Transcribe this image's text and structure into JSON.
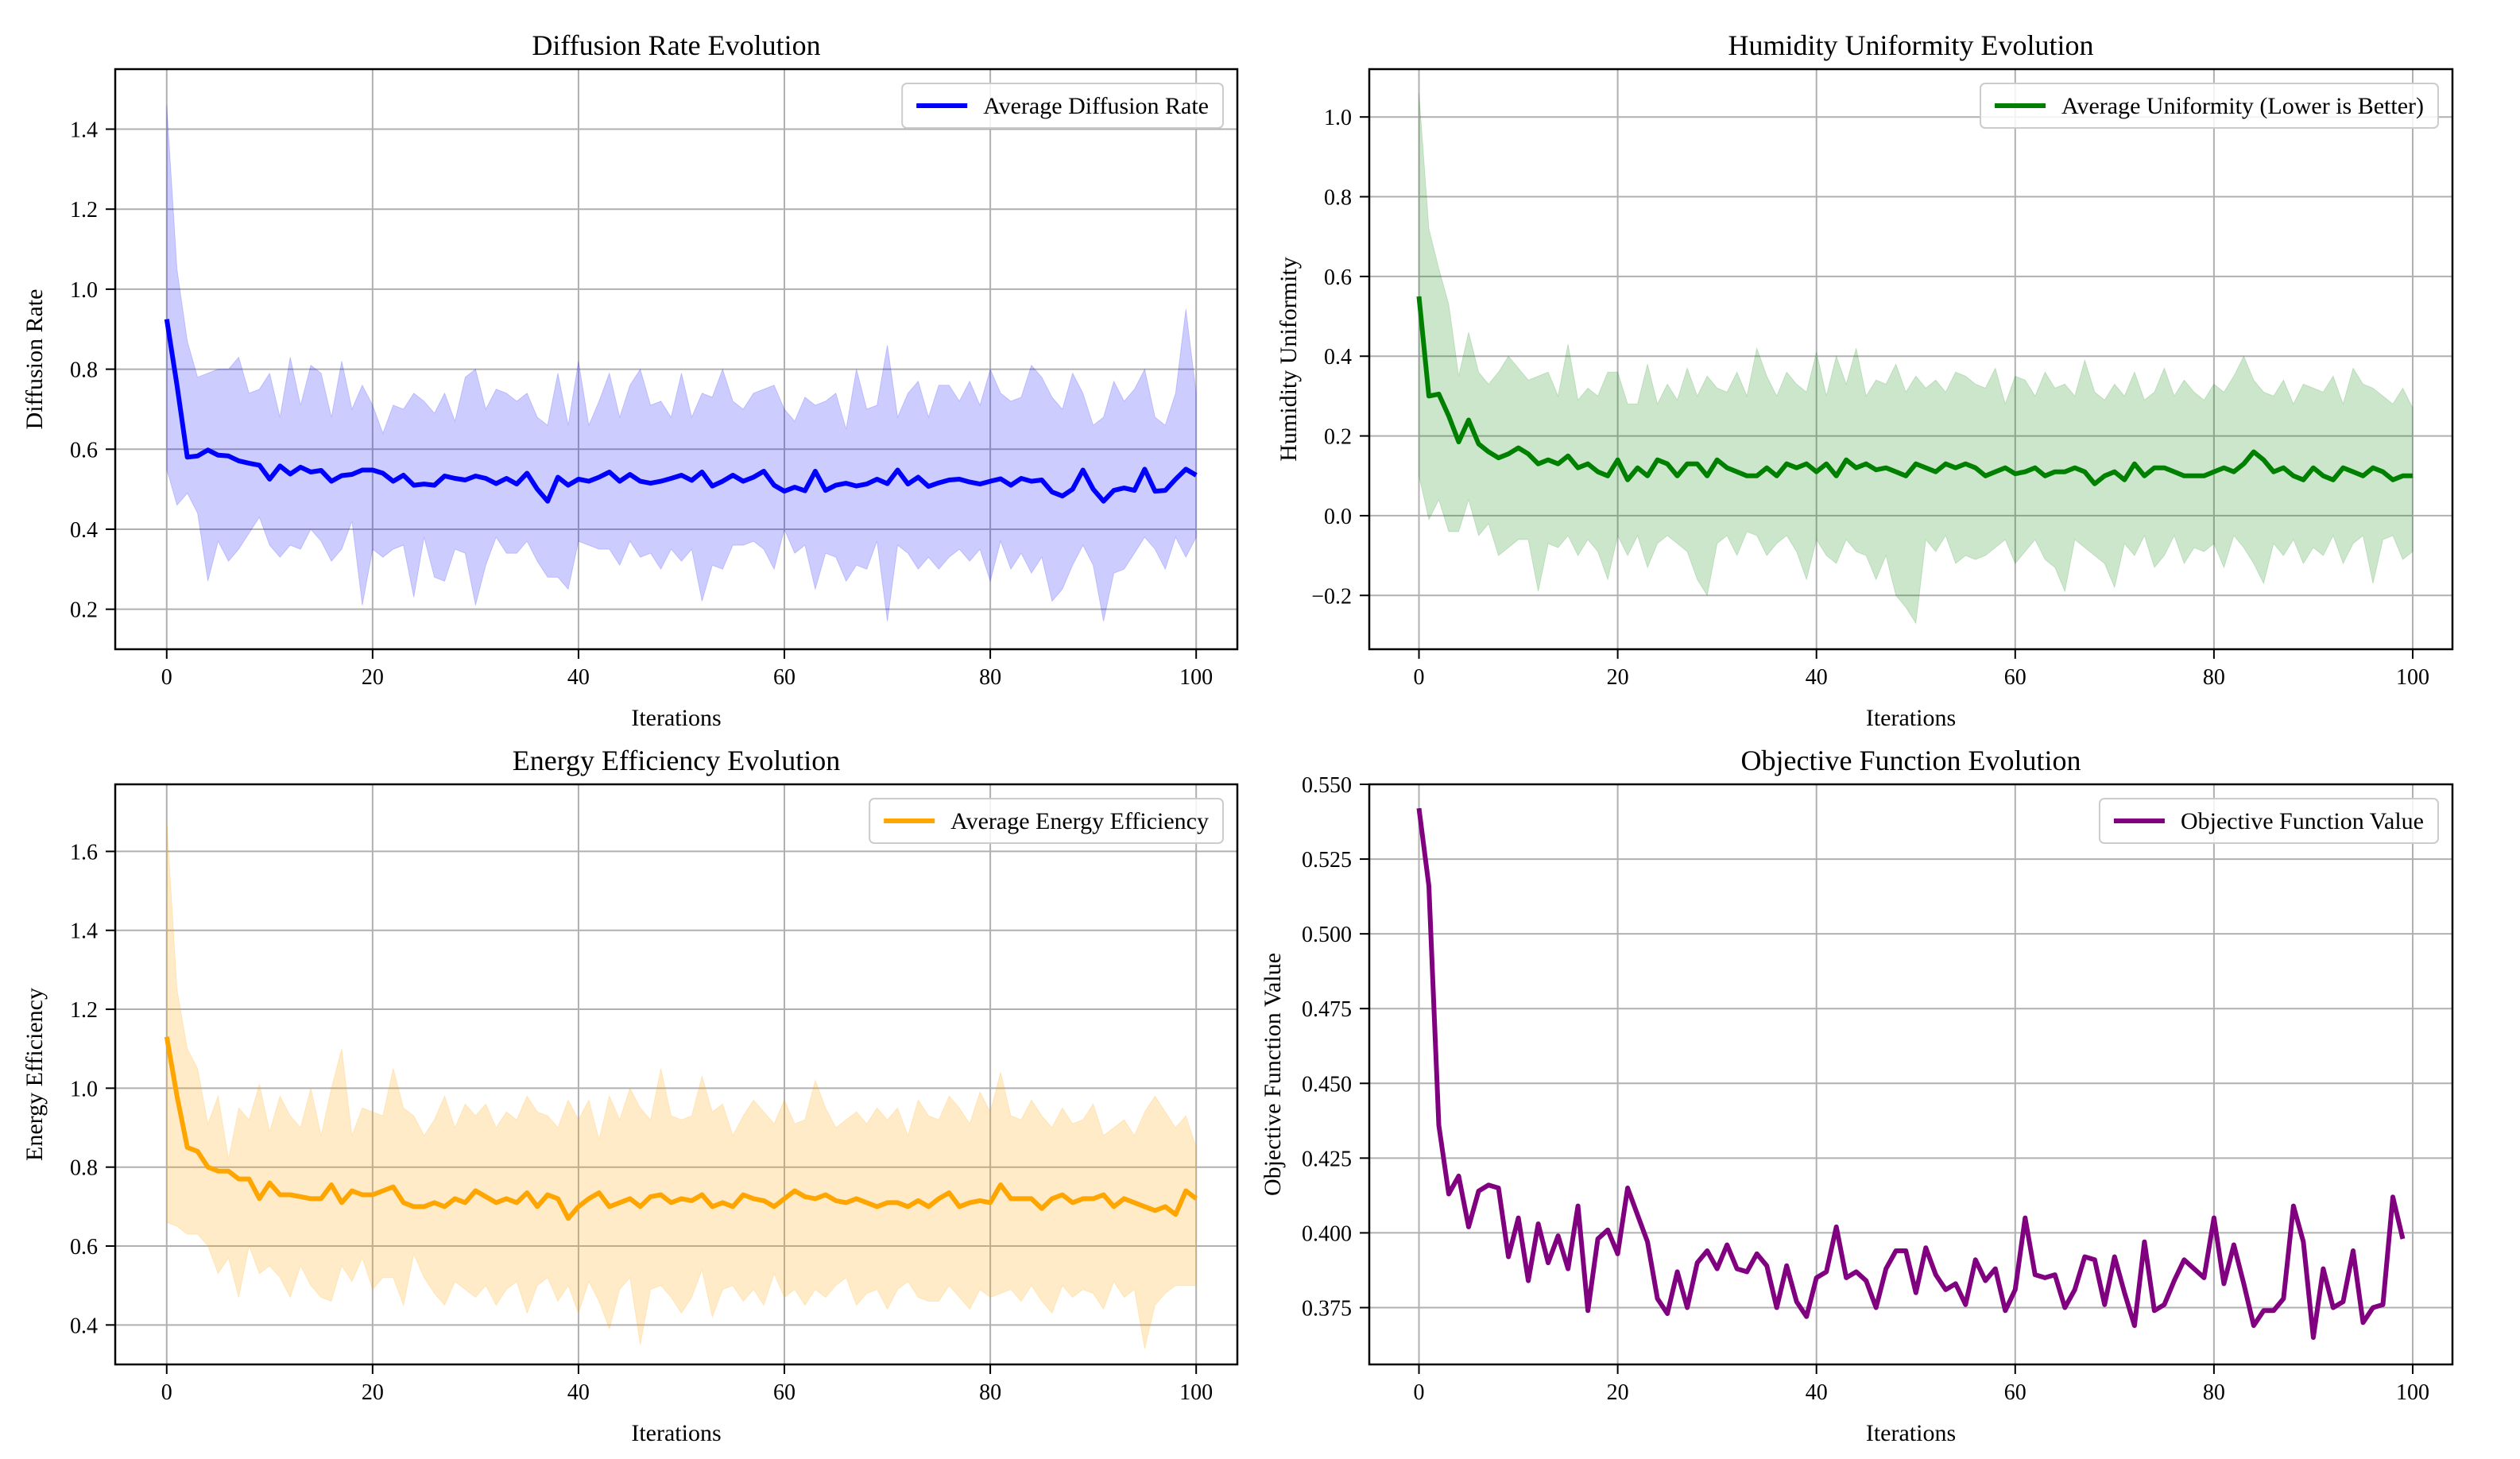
{
  "figure": {
    "x_label": "Iterations"
  },
  "colors": {
    "blue": "#0000ff",
    "green": "#008000",
    "orange": "#ffa500",
    "purple": "#800080",
    "grid": "#b0b0b0",
    "axis": "#000000"
  },
  "chart_data": [
    {
      "id": "diffusion",
      "type": "line",
      "title": "Diffusion Rate Evolution",
      "xlabel": "Iterations",
      "ylabel": "Diffusion Rate",
      "legend": "Average Diffusion Rate",
      "legend_position": "top-right",
      "color": "#0000ff",
      "fill_color": "#0000ff",
      "fill_opacity": 0.2,
      "xlim": [
        -5,
        104
      ],
      "ylim": [
        0.1,
        1.55
      ],
      "xticks": [
        0,
        20,
        40,
        60,
        80,
        100
      ],
      "yticks": [
        0.2,
        0.4,
        0.6,
        0.8,
        1.0,
        1.2,
        1.4
      ],
      "ytick_decimals": 1,
      "grid": true,
      "mean": [
        0.925,
        0.76,
        0.58,
        0.583,
        0.598,
        0.585,
        0.583,
        0.571,
        0.565,
        0.56,
        0.525,
        0.558,
        0.538,
        0.555,
        0.543,
        0.547,
        0.52,
        0.534,
        0.537,
        0.548,
        0.548,
        0.54,
        0.52,
        0.535,
        0.51,
        0.513,
        0.51,
        0.533,
        0.527,
        0.523,
        0.533,
        0.527,
        0.514,
        0.527,
        0.513,
        0.54,
        0.5,
        0.47,
        0.53,
        0.51,
        0.525,
        0.52,
        0.53,
        0.543,
        0.52,
        0.537,
        0.52,
        0.515,
        0.52,
        0.527,
        0.535,
        0.522,
        0.543,
        0.508,
        0.52,
        0.535,
        0.52,
        0.53,
        0.545,
        0.51,
        0.495,
        0.505,
        0.496,
        0.545,
        0.497,
        0.51,
        0.515,
        0.508,
        0.513,
        0.525,
        0.514,
        0.548,
        0.513,
        0.53,
        0.507,
        0.516,
        0.523,
        0.525,
        0.518,
        0.513,
        0.52,
        0.526,
        0.51,
        0.527,
        0.52,
        0.523,
        0.493,
        0.483,
        0.5,
        0.548,
        0.5,
        0.47,
        0.497,
        0.503,
        0.497,
        0.55,
        0.495,
        0.497,
        0.525,
        0.55,
        0.535
      ],
      "upper": [
        1.46,
        1.05,
        0.87,
        0.78,
        0.79,
        0.8,
        0.8,
        0.83,
        0.74,
        0.75,
        0.79,
        0.68,
        0.83,
        0.71,
        0.81,
        0.79,
        0.68,
        0.82,
        0.7,
        0.76,
        0.71,
        0.64,
        0.71,
        0.7,
        0.74,
        0.72,
        0.69,
        0.74,
        0.67,
        0.78,
        0.8,
        0.7,
        0.75,
        0.74,
        0.72,
        0.74,
        0.68,
        0.66,
        0.79,
        0.66,
        0.82,
        0.66,
        0.72,
        0.79,
        0.68,
        0.76,
        0.8,
        0.71,
        0.72,
        0.68,
        0.79,
        0.68,
        0.74,
        0.73,
        0.8,
        0.72,
        0.7,
        0.74,
        0.75,
        0.76,
        0.7,
        0.67,
        0.73,
        0.71,
        0.72,
        0.74,
        0.65,
        0.8,
        0.7,
        0.71,
        0.86,
        0.68,
        0.74,
        0.77,
        0.68,
        0.76,
        0.76,
        0.72,
        0.77,
        0.71,
        0.8,
        0.74,
        0.72,
        0.73,
        0.81,
        0.78,
        0.73,
        0.7,
        0.79,
        0.74,
        0.66,
        0.68,
        0.77,
        0.72,
        0.75,
        0.8,
        0.68,
        0.66,
        0.74,
        0.95,
        0.74
      ],
      "lower": [
        0.55,
        0.46,
        0.49,
        0.44,
        0.27,
        0.37,
        0.32,
        0.35,
        0.39,
        0.43,
        0.36,
        0.33,
        0.36,
        0.35,
        0.4,
        0.37,
        0.32,
        0.35,
        0.42,
        0.21,
        0.35,
        0.33,
        0.35,
        0.36,
        0.23,
        0.38,
        0.28,
        0.27,
        0.35,
        0.34,
        0.21,
        0.31,
        0.38,
        0.34,
        0.34,
        0.37,
        0.32,
        0.28,
        0.28,
        0.25,
        0.37,
        0.36,
        0.35,
        0.35,
        0.31,
        0.37,
        0.33,
        0.34,
        0.3,
        0.35,
        0.32,
        0.35,
        0.22,
        0.31,
        0.3,
        0.36,
        0.36,
        0.37,
        0.35,
        0.3,
        0.4,
        0.34,
        0.36,
        0.25,
        0.34,
        0.33,
        0.27,
        0.31,
        0.3,
        0.37,
        0.17,
        0.36,
        0.34,
        0.3,
        0.33,
        0.3,
        0.33,
        0.35,
        0.32,
        0.35,
        0.27,
        0.37,
        0.3,
        0.34,
        0.29,
        0.33,
        0.22,
        0.25,
        0.31,
        0.36,
        0.31,
        0.17,
        0.29,
        0.3,
        0.34,
        0.38,
        0.35,
        0.3,
        0.38,
        0.33,
        0.38
      ]
    },
    {
      "id": "humidity",
      "type": "line",
      "title": "Humidity Uniformity Evolution",
      "xlabel": "Iterations",
      "ylabel": "Humidity Uniformity",
      "legend": "Average Uniformity (Lower is Better)",
      "legend_position": "top-right",
      "color": "#008000",
      "fill_color": "#008000",
      "fill_opacity": 0.2,
      "xlim": [
        -5,
        104
      ],
      "ylim": [
        -0.335,
        1.12
      ],
      "xticks": [
        0,
        20,
        40,
        60,
        80,
        100
      ],
      "yticks": [
        -0.2,
        0.0,
        0.2,
        0.4,
        0.6,
        0.8,
        1.0
      ],
      "ytick_decimals": 1,
      "grid": true,
      "mean": [
        0.55,
        0.3,
        0.305,
        0.25,
        0.185,
        0.24,
        0.18,
        0.16,
        0.145,
        0.155,
        0.17,
        0.155,
        0.13,
        0.14,
        0.13,
        0.15,
        0.12,
        0.13,
        0.11,
        0.1,
        0.14,
        0.09,
        0.12,
        0.1,
        0.14,
        0.13,
        0.1,
        0.13,
        0.13,
        0.1,
        0.14,
        0.12,
        0.11,
        0.1,
        0.1,
        0.12,
        0.1,
        0.13,
        0.12,
        0.13,
        0.11,
        0.13,
        0.1,
        0.14,
        0.12,
        0.13,
        0.115,
        0.12,
        0.11,
        0.1,
        0.13,
        0.12,
        0.11,
        0.13,
        0.12,
        0.13,
        0.12,
        0.1,
        0.11,
        0.12,
        0.105,
        0.11,
        0.12,
        0.1,
        0.11,
        0.11,
        0.12,
        0.11,
        0.08,
        0.1,
        0.11,
        0.09,
        0.13,
        0.1,
        0.12,
        0.12,
        0.11,
        0.1,
        0.1,
        0.1,
        0.11,
        0.12,
        0.11,
        0.13,
        0.16,
        0.14,
        0.11,
        0.12,
        0.1,
        0.09,
        0.12,
        0.1,
        0.09,
        0.12,
        0.11,
        0.1,
        0.12,
        0.11,
        0.09,
        0.1,
        0.1
      ],
      "upper": [
        1.06,
        0.72,
        0.62,
        0.53,
        0.35,
        0.46,
        0.36,
        0.33,
        0.36,
        0.4,
        0.37,
        0.34,
        0.35,
        0.36,
        0.3,
        0.43,
        0.29,
        0.32,
        0.3,
        0.36,
        0.36,
        0.28,
        0.28,
        0.38,
        0.28,
        0.33,
        0.29,
        0.37,
        0.3,
        0.35,
        0.32,
        0.31,
        0.36,
        0.3,
        0.42,
        0.35,
        0.3,
        0.36,
        0.33,
        0.31,
        0.41,
        0.3,
        0.4,
        0.33,
        0.42,
        0.3,
        0.34,
        0.33,
        0.38,
        0.31,
        0.35,
        0.32,
        0.34,
        0.31,
        0.36,
        0.35,
        0.33,
        0.32,
        0.37,
        0.28,
        0.35,
        0.34,
        0.3,
        0.36,
        0.32,
        0.33,
        0.3,
        0.39,
        0.31,
        0.29,
        0.33,
        0.3,
        0.36,
        0.29,
        0.31,
        0.37,
        0.3,
        0.34,
        0.31,
        0.29,
        0.33,
        0.31,
        0.35,
        0.4,
        0.34,
        0.31,
        0.3,
        0.34,
        0.28,
        0.33,
        0.32,
        0.31,
        0.35,
        0.28,
        0.37,
        0.33,
        0.32,
        0.3,
        0.28,
        0.32,
        0.27
      ],
      "lower": [
        0.1,
        -0.01,
        0.04,
        -0.04,
        -0.04,
        0.04,
        -0.05,
        -0.02,
        -0.1,
        -0.08,
        -0.06,
        -0.06,
        -0.19,
        -0.07,
        -0.08,
        -0.05,
        -0.1,
        -0.06,
        -0.09,
        -0.16,
        -0.05,
        -0.1,
        -0.05,
        -0.13,
        -0.07,
        -0.05,
        -0.07,
        -0.09,
        -0.16,
        -0.2,
        -0.07,
        -0.05,
        -0.1,
        -0.04,
        -0.05,
        -0.1,
        -0.07,
        -0.05,
        -0.09,
        -0.16,
        -0.06,
        -0.1,
        -0.12,
        -0.06,
        -0.09,
        -0.1,
        -0.16,
        -0.1,
        -0.2,
        -0.23,
        -0.27,
        -0.06,
        -0.09,
        -0.05,
        -0.12,
        -0.1,
        -0.11,
        -0.1,
        -0.08,
        -0.06,
        -0.12,
        -0.09,
        -0.06,
        -0.11,
        -0.13,
        -0.19,
        -0.06,
        -0.08,
        -0.1,
        -0.12,
        -0.18,
        -0.07,
        -0.1,
        -0.05,
        -0.13,
        -0.1,
        -0.05,
        -0.12,
        -0.08,
        -0.09,
        -0.07,
        -0.13,
        -0.05,
        -0.08,
        -0.12,
        -0.17,
        -0.07,
        -0.1,
        -0.06,
        -0.12,
        -0.08,
        -0.1,
        -0.05,
        -0.12,
        -0.07,
        -0.05,
        -0.17,
        -0.06,
        -0.05,
        -0.11,
        -0.09
      ]
    },
    {
      "id": "energy",
      "type": "line",
      "title": "Energy Efficiency Evolution",
      "xlabel": "Iterations",
      "ylabel": "Energy Efficiency",
      "legend": "Average Energy Efficiency",
      "legend_position": "top-right",
      "color": "#ffa500",
      "fill_color": "#ffa500",
      "fill_opacity": 0.22,
      "xlim": [
        -5,
        104
      ],
      "ylim": [
        0.3,
        1.77
      ],
      "xticks": [
        0,
        20,
        40,
        60,
        80,
        100
      ],
      "yticks": [
        0.4,
        0.6,
        0.8,
        1.0,
        1.2,
        1.4,
        1.6
      ],
      "ytick_decimals": 1,
      "grid": true,
      "mean": [
        1.13,
        0.98,
        0.85,
        0.84,
        0.8,
        0.79,
        0.79,
        0.77,
        0.77,
        0.72,
        0.76,
        0.73,
        0.73,
        0.725,
        0.72,
        0.72,
        0.755,
        0.71,
        0.74,
        0.73,
        0.73,
        0.74,
        0.75,
        0.71,
        0.7,
        0.7,
        0.71,
        0.7,
        0.72,
        0.71,
        0.74,
        0.725,
        0.71,
        0.72,
        0.71,
        0.735,
        0.7,
        0.73,
        0.72,
        0.67,
        0.7,
        0.72,
        0.735,
        0.7,
        0.71,
        0.72,
        0.7,
        0.725,
        0.73,
        0.71,
        0.72,
        0.715,
        0.73,
        0.7,
        0.71,
        0.7,
        0.73,
        0.72,
        0.715,
        0.7,
        0.72,
        0.74,
        0.725,
        0.72,
        0.73,
        0.715,
        0.71,
        0.72,
        0.71,
        0.7,
        0.71,
        0.71,
        0.7,
        0.715,
        0.7,
        0.72,
        0.735,
        0.7,
        0.71,
        0.715,
        0.71,
        0.755,
        0.72,
        0.72,
        0.72,
        0.695,
        0.72,
        0.73,
        0.71,
        0.72,
        0.72,
        0.73,
        0.7,
        0.72,
        0.71,
        0.7,
        0.69,
        0.7,
        0.68,
        0.74,
        0.72
      ],
      "upper": [
        1.68,
        1.25,
        1.1,
        1.05,
        0.91,
        0.98,
        0.82,
        0.95,
        0.92,
        1.01,
        0.89,
        0.98,
        0.93,
        0.9,
        1.0,
        0.88,
        1.0,
        1.1,
        0.88,
        0.95,
        0.94,
        0.93,
        1.05,
        0.95,
        0.93,
        0.88,
        0.92,
        0.98,
        0.9,
        0.96,
        0.93,
        0.96,
        0.9,
        0.94,
        0.92,
        0.98,
        0.94,
        0.93,
        0.9,
        0.97,
        0.92,
        0.97,
        0.87,
        0.98,
        0.92,
        1.0,
        0.95,
        0.92,
        1.05,
        0.93,
        0.92,
        0.93,
        1.03,
        0.94,
        0.96,
        0.88,
        0.93,
        0.97,
        0.94,
        0.91,
        0.97,
        0.91,
        0.92,
        1.02,
        0.95,
        0.9,
        0.92,
        0.94,
        0.91,
        0.95,
        0.92,
        0.95,
        0.88,
        0.97,
        0.93,
        0.92,
        0.98,
        0.95,
        0.91,
        0.99,
        0.94,
        1.04,
        0.93,
        0.92,
        0.97,
        0.93,
        0.9,
        0.95,
        0.91,
        0.92,
        0.96,
        0.88,
        0.9,
        0.92,
        0.88,
        0.94,
        0.98,
        0.94,
        0.9,
        0.93,
        0.85
      ],
      "lower": [
        0.66,
        0.65,
        0.63,
        0.63,
        0.6,
        0.53,
        0.57,
        0.47,
        0.6,
        0.53,
        0.55,
        0.52,
        0.47,
        0.55,
        0.5,
        0.47,
        0.46,
        0.55,
        0.51,
        0.57,
        0.49,
        0.52,
        0.52,
        0.45,
        0.58,
        0.52,
        0.48,
        0.45,
        0.51,
        0.49,
        0.47,
        0.5,
        0.45,
        0.49,
        0.51,
        0.43,
        0.5,
        0.52,
        0.46,
        0.5,
        0.43,
        0.51,
        0.46,
        0.39,
        0.49,
        0.52,
        0.35,
        0.49,
        0.5,
        0.47,
        0.43,
        0.47,
        0.54,
        0.42,
        0.49,
        0.5,
        0.46,
        0.49,
        0.45,
        0.53,
        0.47,
        0.49,
        0.45,
        0.49,
        0.47,
        0.5,
        0.52,
        0.45,
        0.48,
        0.49,
        0.44,
        0.49,
        0.51,
        0.47,
        0.46,
        0.46,
        0.5,
        0.47,
        0.44,
        0.49,
        0.47,
        0.48,
        0.49,
        0.46,
        0.5,
        0.46,
        0.43,
        0.5,
        0.47,
        0.49,
        0.48,
        0.44,
        0.51,
        0.47,
        0.49,
        0.34,
        0.45,
        0.48,
        0.5,
        0.5,
        0.5
      ]
    },
    {
      "id": "objective",
      "type": "line",
      "title": "Objective Function Evolution",
      "xlabel": "Iterations",
      "ylabel": "Objective Function Value",
      "legend": "Objective Function Value",
      "legend_position": "top-right",
      "color": "#800080",
      "xlim": [
        -5,
        104
      ],
      "ylim": [
        0.356,
        0.55
      ],
      "xticks": [
        0,
        20,
        40,
        60,
        80,
        100
      ],
      "yticks": [
        0.375,
        0.4,
        0.425,
        0.45,
        0.475,
        0.5,
        0.525,
        0.55
      ],
      "ytick_decimals": 3,
      "grid": true,
      "values": [
        0.542,
        0.516,
        0.436,
        0.413,
        0.419,
        0.402,
        0.414,
        0.416,
        0.415,
        0.392,
        0.405,
        0.384,
        0.403,
        0.39,
        0.399,
        0.388,
        0.409,
        0.374,
        0.398,
        0.401,
        0.393,
        0.415,
        0.406,
        0.397,
        0.378,
        0.373,
        0.387,
        0.375,
        0.39,
        0.394,
        0.388,
        0.396,
        0.388,
        0.387,
        0.393,
        0.389,
        0.375,
        0.389,
        0.377,
        0.372,
        0.385,
        0.387,
        0.402,
        0.385,
        0.387,
        0.384,
        0.375,
        0.388,
        0.394,
        0.394,
        0.38,
        0.395,
        0.386,
        0.381,
        0.383,
        0.376,
        0.391,
        0.384,
        0.388,
        0.374,
        0.381,
        0.405,
        0.386,
        0.385,
        0.386,
        0.375,
        0.381,
        0.392,
        0.391,
        0.376,
        0.392,
        0.38,
        0.369,
        0.397,
        0.374,
        0.376,
        0.384,
        0.391,
        0.388,
        0.385,
        0.405,
        0.383,
        0.396,
        0.383,
        0.369,
        0.374,
        0.374,
        0.378,
        0.409,
        0.397,
        0.365,
        0.388,
        0.375,
        0.377,
        0.394,
        0.37,
        0.375,
        0.376,
        0.412,
        0.398
      ]
    }
  ]
}
